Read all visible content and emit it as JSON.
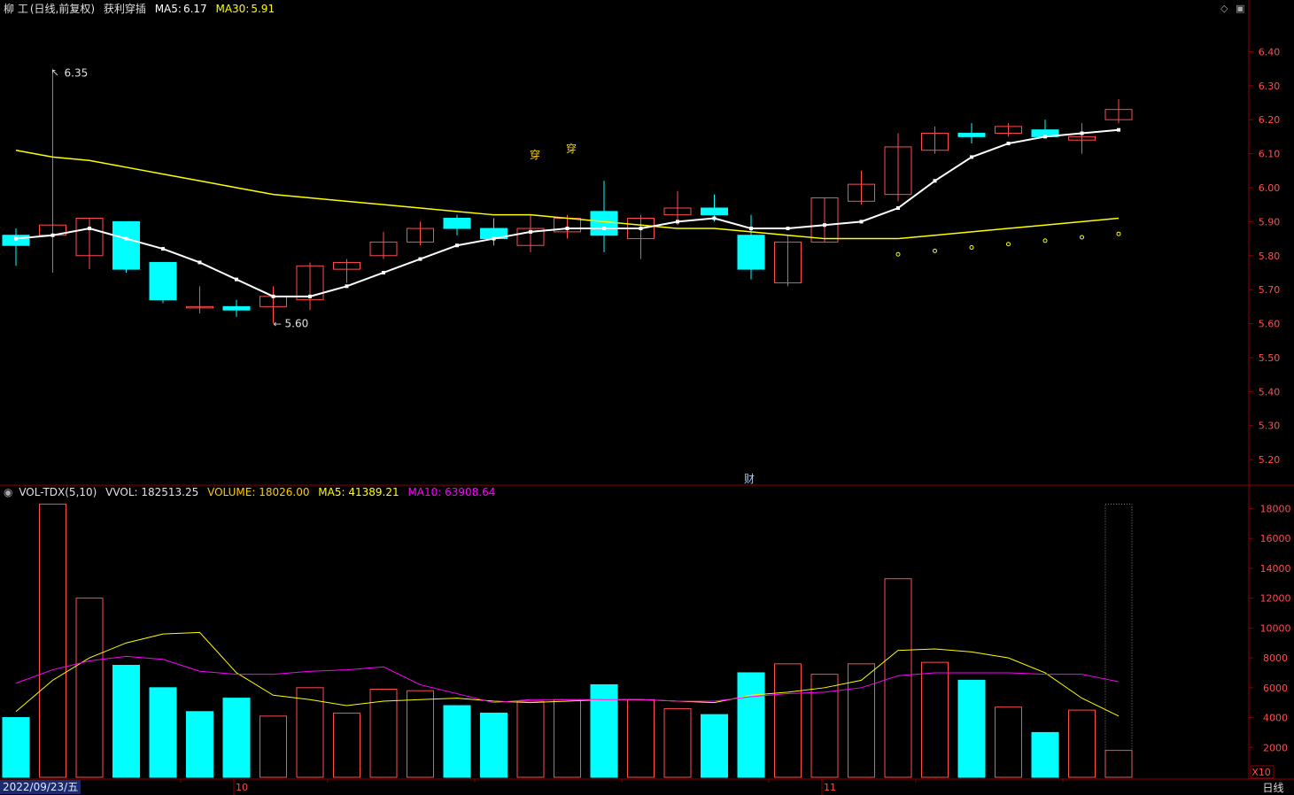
{
  "header": {
    "stock": "柳 工",
    "mode": "(日线,前复权)",
    "indicator": "获利穿插",
    "ma5_label": "MA5:",
    "ma5_value": "6.17",
    "ma30_label": "MA30:",
    "ma30_value": "5.91"
  },
  "vol_header": {
    "name": "VOL-TDX(5,10)",
    "vvol": "VVOL: 182513.25",
    "volume": "VOLUME: 18026.00",
    "ma5": "MA5: 41389.21",
    "ma10": "MA10: 63908.64"
  },
  "annotations": {
    "high_label": "6.35",
    "low_label": "5.60",
    "signal_1": "穿",
    "signal_2": "穿",
    "finance_marker": "财",
    "multiplier": "X10"
  },
  "footer": {
    "date": "2022/09/23/五",
    "month_10": "10",
    "month_11": "11",
    "period": "日线"
  },
  "colors": {
    "up": "#ff4d4d",
    "down": "#00ffff",
    "ma5": "#ffffff",
    "ma30": "#ffff00",
    "vol_ma5": "#ffff00",
    "vol_ma10": "#ff00ff",
    "grid": "#8b0000",
    "axis_text": "#ff4d4d"
  },
  "chart_data": [
    {
      "type": "candlestick",
      "title": "柳 工 (日线,前复权)",
      "ylim": [
        5.13,
        6.5
      ],
      "y_ticks": [
        6.4,
        6.3,
        6.2,
        6.1,
        6.0,
        5.9,
        5.8,
        5.7,
        5.6,
        5.5,
        5.4,
        5.3,
        5.2
      ],
      "candles": [
        {
          "o": 5.86,
          "c": 5.83,
          "h": 5.88,
          "l": 5.77
        },
        {
          "o": 5.86,
          "c": 5.89,
          "h": 6.35,
          "l": 5.75
        },
        {
          "o": 5.8,
          "c": 5.91,
          "h": 5.91,
          "l": 5.76
        },
        {
          "o": 5.9,
          "c": 5.76,
          "h": 5.9,
          "l": 5.75
        },
        {
          "o": 5.78,
          "c": 5.67,
          "h": 5.78,
          "l": 5.66
        },
        {
          "o": 5.65,
          "c": 5.65,
          "h": 5.71,
          "l": 5.63
        },
        {
          "o": 5.65,
          "c": 5.64,
          "h": 5.67,
          "l": 5.62
        },
        {
          "o": 5.65,
          "c": 5.68,
          "h": 5.71,
          "l": 5.6
        },
        {
          "o": 5.67,
          "c": 5.77,
          "h": 5.78,
          "l": 5.64
        },
        {
          "o": 5.76,
          "c": 5.78,
          "h": 5.79,
          "l": 5.72
        },
        {
          "o": 5.8,
          "c": 5.84,
          "h": 5.87,
          "l": 5.79
        },
        {
          "o": 5.84,
          "c": 5.88,
          "h": 5.9,
          "l": 5.83
        },
        {
          "o": 5.91,
          "c": 5.88,
          "h": 5.92,
          "l": 5.86
        },
        {
          "o": 5.88,
          "c": 5.85,
          "h": 5.91,
          "l": 5.83
        },
        {
          "o": 5.83,
          "c": 5.88,
          "h": 5.92,
          "l": 5.81
        },
        {
          "o": 5.87,
          "c": 5.91,
          "h": 5.92,
          "l": 5.85
        },
        {
          "o": 5.93,
          "c": 5.86,
          "h": 6.02,
          "l": 5.81
        },
        {
          "o": 5.85,
          "c": 5.91,
          "h": 5.92,
          "l": 5.79
        },
        {
          "o": 5.92,
          "c": 5.94,
          "h": 5.99,
          "l": 5.89
        },
        {
          "o": 5.94,
          "c": 5.92,
          "h": 5.98,
          "l": 5.9
        },
        {
          "o": 5.86,
          "c": 5.76,
          "h": 5.92,
          "l": 5.73
        },
        {
          "o": 5.72,
          "c": 5.84,
          "h": 5.86,
          "l": 5.71
        },
        {
          "o": 5.84,
          "c": 5.97,
          "h": 5.97,
          "l": 5.84
        },
        {
          "o": 5.96,
          "c": 6.01,
          "h": 6.05,
          "l": 5.95
        },
        {
          "o": 5.98,
          "c": 6.12,
          "h": 6.16,
          "l": 5.96
        },
        {
          "o": 6.11,
          "c": 6.16,
          "h": 6.18,
          "l": 6.1
        },
        {
          "o": 6.16,
          "c": 6.15,
          "h": 6.19,
          "l": 6.13
        },
        {
          "o": 6.16,
          "c": 6.18,
          "h": 6.19,
          "l": 6.15
        },
        {
          "o": 6.17,
          "c": 6.15,
          "h": 6.2,
          "l": 6.15
        },
        {
          "o": 6.14,
          "c": 6.15,
          "h": 6.19,
          "l": 6.1
        },
        {
          "o": 6.2,
          "c": 6.23,
          "h": 6.26,
          "l": 6.19
        }
      ],
      "ma5": [
        5.85,
        5.86,
        5.88,
        5.85,
        5.82,
        5.78,
        5.73,
        5.68,
        5.68,
        5.71,
        5.75,
        5.79,
        5.83,
        5.85,
        5.87,
        5.88,
        5.88,
        5.88,
        5.9,
        5.91,
        5.88,
        5.88,
        5.89,
        5.9,
        5.94,
        6.02,
        6.09,
        6.13,
        6.15,
        6.16,
        6.17
      ],
      "ma30": [
        6.11,
        6.09,
        6.08,
        6.06,
        6.04,
        6.02,
        6.0,
        5.98,
        5.97,
        5.96,
        5.95,
        5.94,
        5.93,
        5.92,
        5.92,
        5.91,
        5.9,
        5.89,
        5.88,
        5.88,
        5.87,
        5.86,
        5.85,
        5.85,
        5.85,
        5.86,
        5.87,
        5.88,
        5.89,
        5.9,
        5.91
      ],
      "future_points": [
        5.83,
        5.84,
        5.85,
        5.86,
        5.87,
        5.88,
        5.89
      ]
    },
    {
      "type": "bar",
      "title": "VOL-TDX(5,10)",
      "ylim": [
        0,
        18500
      ],
      "y_ticks": [
        18000,
        16000,
        14000,
        12000,
        10000,
        8000,
        6000,
        4000,
        2000
      ],
      "values": [
        4000,
        18300,
        12000,
        7500,
        6000,
        4400,
        5300,
        4100,
        6000,
        4300,
        5900,
        5800,
        4800,
        4300,
        5100,
        5200,
        6200,
        5200,
        4600,
        4200,
        7000,
        7600,
        6900,
        7600,
        13300,
        7700,
        6500,
        4700,
        3000,
        4500,
        1800
      ],
      "up": [
        false,
        true,
        true,
        false,
        false,
        false,
        false,
        true,
        true,
        true,
        true,
        true,
        false,
        false,
        true,
        true,
        false,
        true,
        true,
        false,
        false,
        true,
        true,
        true,
        true,
        true,
        false,
        true,
        false,
        true,
        true
      ],
      "ma5": [
        4400,
        6500,
        8000,
        9000,
        9600,
        9700,
        7000,
        5500,
        5200,
        4800,
        5100,
        5200,
        5300,
        5100,
        5000,
        5100,
        5200,
        5200,
        5100,
        5000,
        5500,
        5700,
        6000,
        6500,
        8500,
        8600,
        8400,
        8000,
        7000,
        5300,
        4100
      ],
      "ma10": [
        6300,
        7200,
        7800,
        8100,
        7900,
        7100,
        6900,
        6900,
        7100,
        7200,
        7400,
        6200,
        5600,
        5000,
        5200,
        5200,
        5200,
        5200,
        5100,
        5100,
        5400,
        5600,
        5700,
        6000,
        6800,
        7000,
        7000,
        7000,
        6900,
        6900,
        6400
      ]
    }
  ]
}
